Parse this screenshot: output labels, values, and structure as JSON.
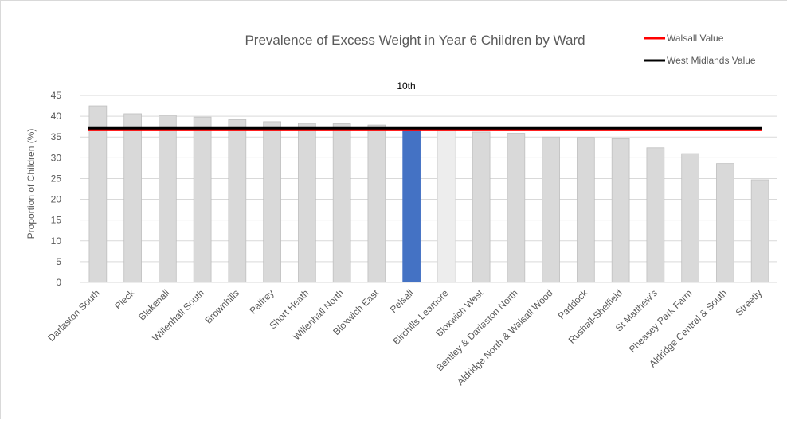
{
  "chart_data": {
    "type": "bar",
    "title": "Prevalence of Excess Weight in Year 6 Children by Ward",
    "ylabel": "Proportion of Children (%)",
    "xlabel": "",
    "ylim": [
      0,
      45
    ],
    "yticks": [
      "0",
      "5",
      "10",
      "15",
      "20",
      "25",
      "30",
      "35",
      "40",
      "45"
    ],
    "grid": true,
    "categories": [
      "Darlaston South",
      "Pleck",
      "Blakenall",
      "Willenhall South",
      "Brownhills",
      "Palfrey",
      "Short Heath",
      "Willenhall North",
      "Bloxwich East",
      "Pelsall",
      "Birchills Leamore",
      "Bloxwich West",
      "Bentley & Darlaston North",
      "Aldridge North & Walsall Wood",
      "Paddock",
      "Rushall-Shelfield",
      "St Matthew's",
      "Pheasey Park Farm",
      "Aldridge Central & South",
      "Streetly"
    ],
    "values": [
      42.5,
      40.6,
      40.2,
      39.8,
      39.2,
      38.7,
      38.3,
      38.2,
      37.9,
      37.0,
      36.9,
      36.2,
      35.9,
      35.0,
      34.9,
      34.6,
      32.4,
      31.0,
      28.6,
      24.7
    ],
    "highlight_index": 9,
    "highlight_label": "10th",
    "reference_lines": [
      {
        "name": "Walsall Value",
        "value": 36.7,
        "color": "#ff0000"
      },
      {
        "name": "West Midlands Value",
        "value": 37.1,
        "color": "#000000"
      }
    ],
    "legend_position": "top-right",
    "colors": {
      "bar": "#d9d9d9",
      "bar_border": "#bfbfbf",
      "highlight": "#4472c4",
      "following": "#ededed",
      "grid": "#d9d9d9",
      "text": "#595959"
    }
  }
}
